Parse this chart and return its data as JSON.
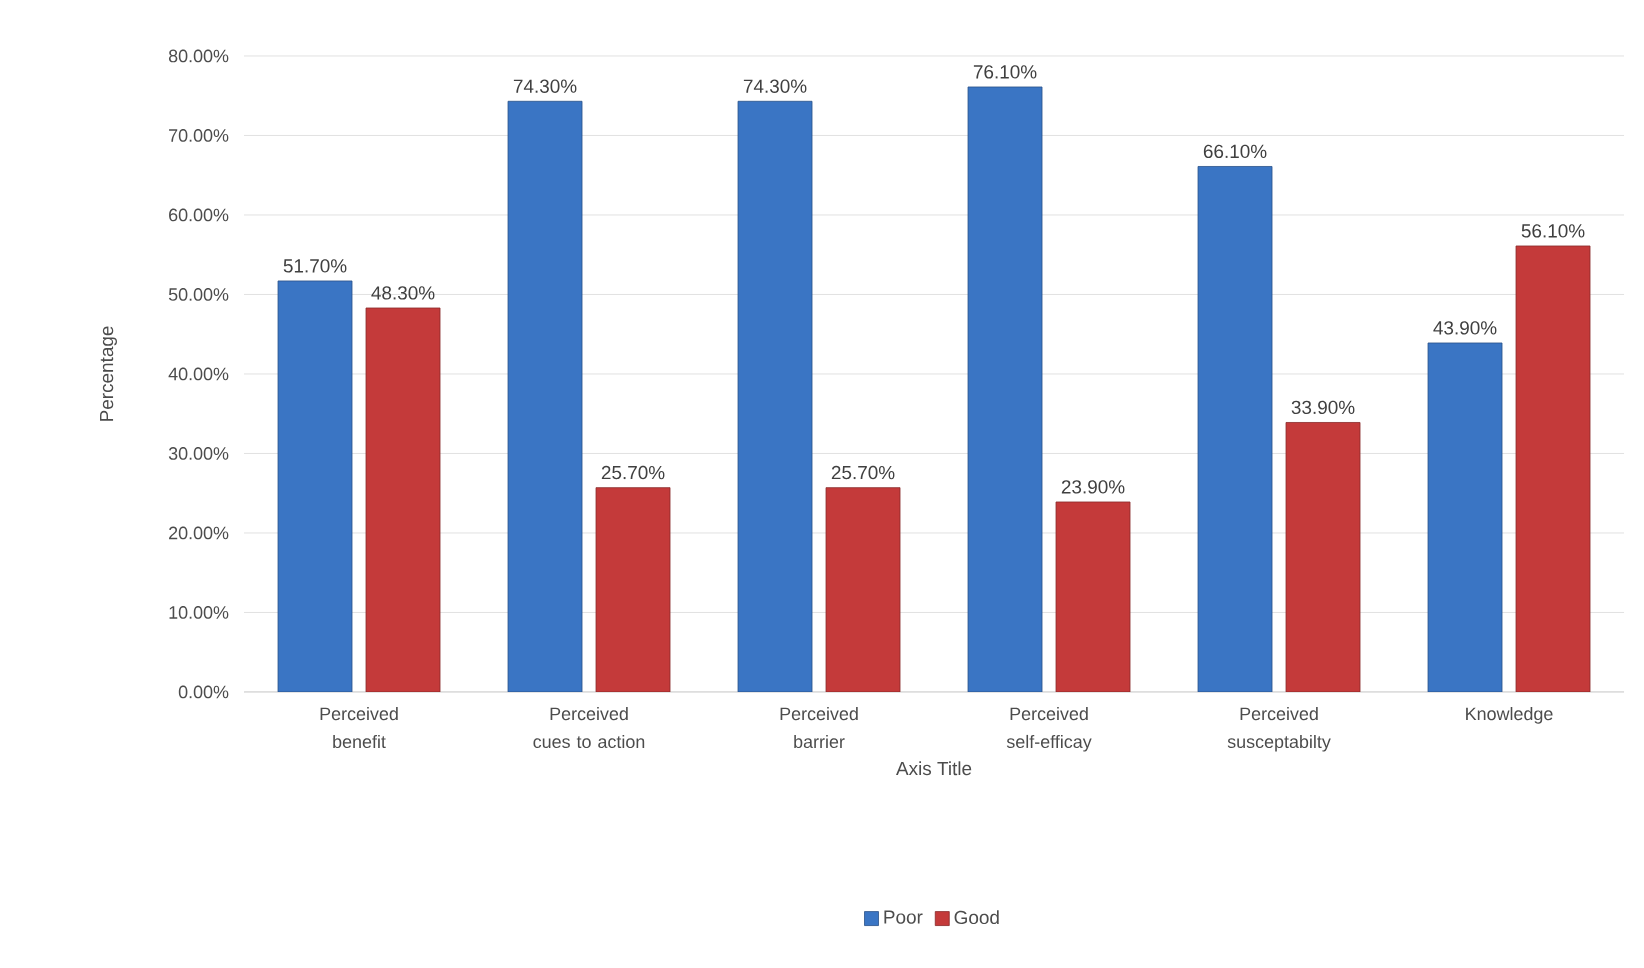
{
  "chart_data": {
    "type": "bar",
    "xlabel": "Axis Title",
    "ylabel": "Percentage",
    "categories": [
      "Perceived benefit",
      "Perceived cues to action",
      "Perceived barrier",
      "Perceived self-efficay",
      "Perceived susceptabilty",
      "Knowledge"
    ],
    "series": [
      {
        "name": "Poor",
        "color": "#3a75c4",
        "values": [
          51.7,
          74.3,
          74.3,
          76.1,
          66.1,
          43.9
        ],
        "value_labels": [
          "51.70%",
          "74.30%",
          "74.30%",
          "76.10%",
          "66.10%",
          "43.90%"
        ]
      },
      {
        "name": "Good",
        "color": "#c43a3a",
        "values": [
          48.3,
          25.7,
          25.7,
          23.9,
          33.9,
          56.1
        ],
        "value_labels": [
          "48.30%",
          "25.70%",
          "25.70%",
          "23.90%",
          "33.90%",
          "56.10%"
        ]
      }
    ],
    "ylim": [
      0,
      80
    ],
    "yticks": [
      {
        "value": 0,
        "label": "0.00%"
      },
      {
        "value": 10,
        "label": "10.00%"
      },
      {
        "value": 20,
        "label": "20.00%"
      },
      {
        "value": 30,
        "label": "30.00%"
      },
      {
        "value": 40,
        "label": "40.00%"
      },
      {
        "value": 50,
        "label": "50.00%"
      },
      {
        "value": 60,
        "label": "60.00%"
      },
      {
        "value": 70,
        "label": "70.00%"
      },
      {
        "value": 80,
        "label": "80.00%"
      }
    ],
    "grid": "y",
    "legend": "bottom"
  }
}
